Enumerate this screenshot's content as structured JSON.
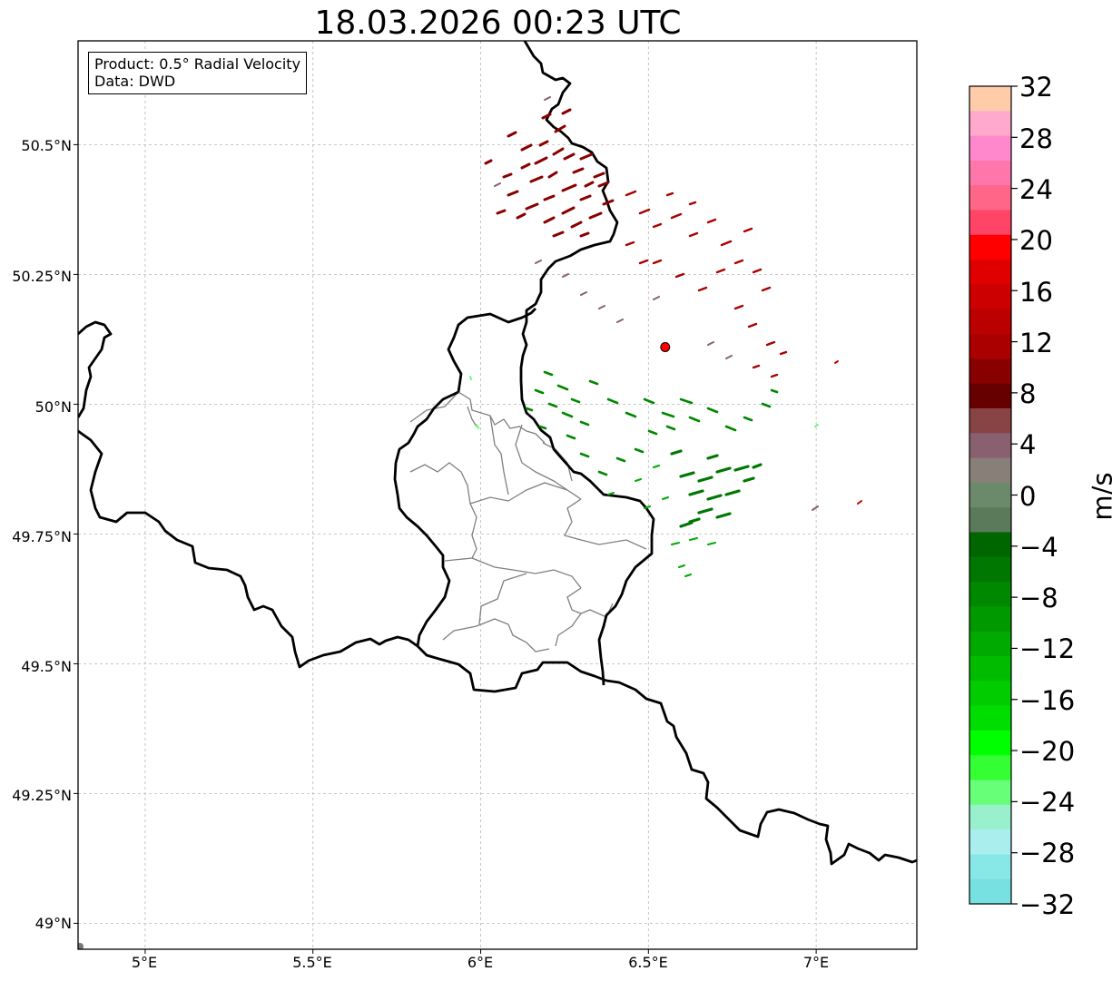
{
  "title": "18.03.2026 00:23 UTC",
  "info": {
    "product": "Product: 0.5° Radial Velocity",
    "data": "Data: DWD"
  },
  "map": {
    "extent_lon": [
      4.8,
      7.3
    ],
    "extent_lat": [
      48.95,
      50.7
    ],
    "radar_site": {
      "lon": 6.55,
      "lat": 50.11,
      "color": "#ff0000"
    },
    "grid": true,
    "lat_ticks": [
      "50.5°N",
      "50.25°N",
      "50°N",
      "49.75°N",
      "49.5°N",
      "49.25°N",
      "49°N"
    ],
    "lon_ticks": [
      "5°E",
      "5.5°E",
      "6°E",
      "6.5°E",
      "7°E"
    ],
    "lat_tick_values": [
      50.5,
      50.25,
      50.0,
      49.75,
      49.5,
      49.25,
      49.0
    ],
    "lon_tick_values": [
      5.0,
      5.5,
      6.0,
      6.5,
      7.0
    ]
  },
  "colorbar": {
    "label": "m/s",
    "min": -32,
    "max": 32,
    "ticks": [
      "32",
      "28",
      "24",
      "20",
      "16",
      "12",
      "8",
      "4",
      "0",
      "−4",
      "−8",
      "−12",
      "−16",
      "−20",
      "−24",
      "−28",
      "−32"
    ],
    "tick_values": [
      32,
      28,
      24,
      20,
      16,
      12,
      8,
      4,
      0,
      -4,
      -8,
      -12,
      -16,
      -20,
      -24,
      -28,
      -32
    ],
    "colors_top_to_bottom": [
      "#ffccaa",
      "#ffaacc",
      "#ff88cc",
      "#ff77aa",
      "#ff6688",
      "#ff4466",
      "#ff0000",
      "#e00000",
      "#cc0000",
      "#bb0000",
      "#aa0000",
      "#880000",
      "#660000",
      "#884444",
      "#886070",
      "#888078",
      "#6a8a6a",
      "#5a7a5a",
      "#006600",
      "#007700",
      "#008800",
      "#009900",
      "#00aa00",
      "#00bb00",
      "#00cc00",
      "#00dd00",
      "#00ff00",
      "#33ff33",
      "#66ff77",
      "#99f0cc",
      "#aaeeee",
      "#88e8e8",
      "#77e0e0"
    ]
  }
}
